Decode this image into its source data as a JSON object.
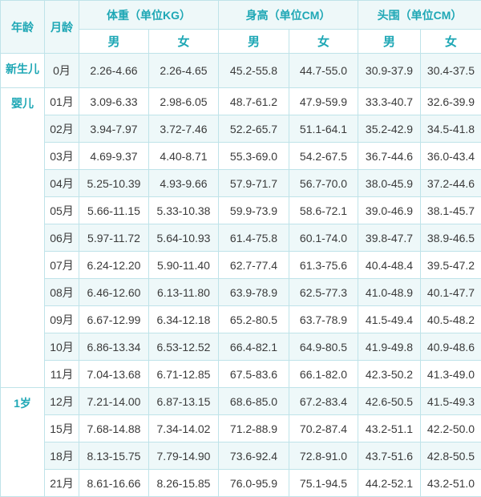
{
  "header": {
    "age": "年龄",
    "month": "月龄",
    "weight": "体重（单位KG）",
    "height": "身高（单位CM）",
    "head": "头围（单位CM）",
    "male": "男",
    "female": "女"
  },
  "age_groups": [
    "新生儿",
    "婴儿",
    "1岁"
  ],
  "rows": [
    {
      "month": "0月",
      "w_m": "2.26-4.66",
      "w_f": "2.26-4.65",
      "h_m": "45.2-55.8",
      "h_f": "44.7-55.0",
      "c_m": "30.9-37.9",
      "c_f": "30.4-37.5"
    },
    {
      "month": "01月",
      "w_m": "3.09-6.33",
      "w_f": "2.98-6.05",
      "h_m": "48.7-61.2",
      "h_f": "47.9-59.9",
      "c_m": "33.3-40.7",
      "c_f": "32.6-39.9"
    },
    {
      "month": "02月",
      "w_m": "3.94-7.97",
      "w_f": "3.72-7.46",
      "h_m": "52.2-65.7",
      "h_f": "51.1-64.1",
      "c_m": "35.2-42.9",
      "c_f": "34.5-41.8"
    },
    {
      "month": "03月",
      "w_m": "4.69-9.37",
      "w_f": "4.40-8.71",
      "h_m": "55.3-69.0",
      "h_f": "54.2-67.5",
      "c_m": "36.7-44.6",
      "c_f": "36.0-43.4"
    },
    {
      "month": "04月",
      "w_m": "5.25-10.39",
      "w_f": "4.93-9.66",
      "h_m": "57.9-71.7",
      "h_f": "56.7-70.0",
      "c_m": "38.0-45.9",
      "c_f": "37.2-44.6"
    },
    {
      "month": "05月",
      "w_m": "5.66-11.15",
      "w_f": "5.33-10.38",
      "h_m": "59.9-73.9",
      "h_f": "58.6-72.1",
      "c_m": "39.0-46.9",
      "c_f": "38.1-45.7"
    },
    {
      "month": "06月",
      "w_m": "5.97-11.72",
      "w_f": "5.64-10.93",
      "h_m": "61.4-75.8",
      "h_f": "60.1-74.0",
      "c_m": "39.8-47.7",
      "c_f": "38.9-46.5"
    },
    {
      "month": "07月",
      "w_m": "6.24-12.20",
      "w_f": "5.90-11.40",
      "h_m": "62.7-77.4",
      "h_f": "61.3-75.6",
      "c_m": "40.4-48.4",
      "c_f": "39.5-47.2"
    },
    {
      "month": "08月",
      "w_m": "6.46-12.60",
      "w_f": "6.13-11.80",
      "h_m": "63.9-78.9",
      "h_f": "62.5-77.3",
      "c_m": "41.0-48.9",
      "c_f": "40.1-47.7"
    },
    {
      "month": "09月",
      "w_m": "6.67-12.99",
      "w_f": "6.34-12.18",
      "h_m": "65.2-80.5",
      "h_f": "63.7-78.9",
      "c_m": "41.5-49.4",
      "c_f": "40.5-48.2"
    },
    {
      "month": "10月",
      "w_m": "6.86-13.34",
      "w_f": "6.53-12.52",
      "h_m": "66.4-82.1",
      "h_f": "64.9-80.5",
      "c_m": "41.9-49.8",
      "c_f": "40.9-48.6"
    },
    {
      "month": "11月",
      "w_m": "7.04-13.68",
      "w_f": "6.71-12.85",
      "h_m": "67.5-83.6",
      "h_f": "66.1-82.0",
      "c_m": "42.3-50.2",
      "c_f": "41.3-49.0"
    },
    {
      "month": "12月",
      "w_m": "7.21-14.00",
      "w_f": "6.87-13.15",
      "h_m": "68.6-85.0",
      "h_f": "67.2-83.4",
      "c_m": "42.6-50.5",
      "c_f": "41.5-49.3"
    },
    {
      "month": "15月",
      "w_m": "7.68-14.88",
      "w_f": "7.34-14.02",
      "h_m": "71.2-88.9",
      "h_f": "70.2-87.4",
      "c_m": "43.2-51.1",
      "c_f": "42.2-50.0"
    },
    {
      "month": "18月",
      "w_m": "8.13-15.75",
      "w_f": "7.79-14.90",
      "h_m": "73.6-92.4",
      "h_f": "72.8-91.0",
      "c_m": "43.7-51.6",
      "c_f": "42.8-50.5"
    },
    {
      "month": "21月",
      "w_m": "8.61-16.66",
      "w_f": "8.26-15.85",
      "h_m": "76.0-95.9",
      "h_f": "75.1-94.5",
      "c_m": "44.2-52.1",
      "c_f": "43.2-51.0"
    }
  ],
  "colors": {
    "header_text": "#1ea7b5",
    "border": "#bfe3e9",
    "band": "#eef8f9",
    "body_text": "#3a3a3a"
  }
}
